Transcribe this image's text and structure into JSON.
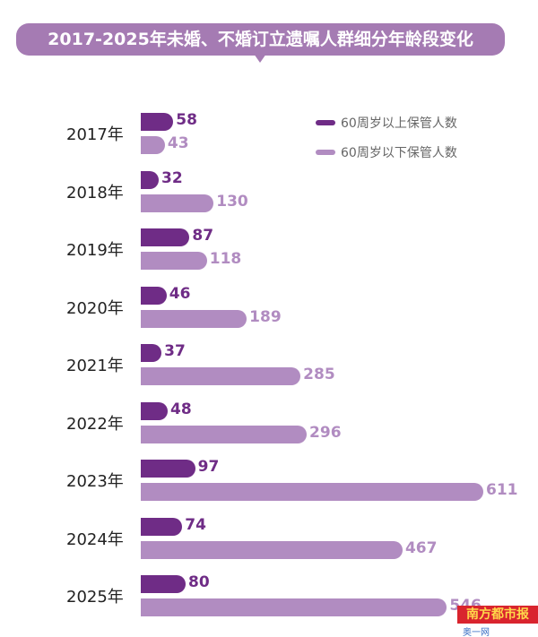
{
  "chart_data": {
    "type": "bar",
    "orientation": "horizontal",
    "title": "2017-2025年未婚、不婚订立遗嘱人群细分年龄段变化",
    "categories": [
      "2017年",
      "2018年",
      "2019年",
      "2020年",
      "2021年",
      "2022年",
      "2023年",
      "2024年",
      "2025年"
    ],
    "series": [
      {
        "name": "60周岁以上保管人数",
        "color": "#6f2c86",
        "values": [
          58,
          32,
          87,
          46,
          37,
          48,
          97,
          74,
          80
        ]
      },
      {
        "name": "60周岁以下保管人数",
        "color": "#b18cc1",
        "values": [
          43,
          130,
          118,
          189,
          285,
          296,
          611,
          467,
          546
        ]
      }
    ],
    "legend": "top-right",
    "xlim": [
      0,
      611
    ]
  },
  "watermark": {
    "logo": "南方都市报",
    "site": "奥一网oeeee.com"
  }
}
